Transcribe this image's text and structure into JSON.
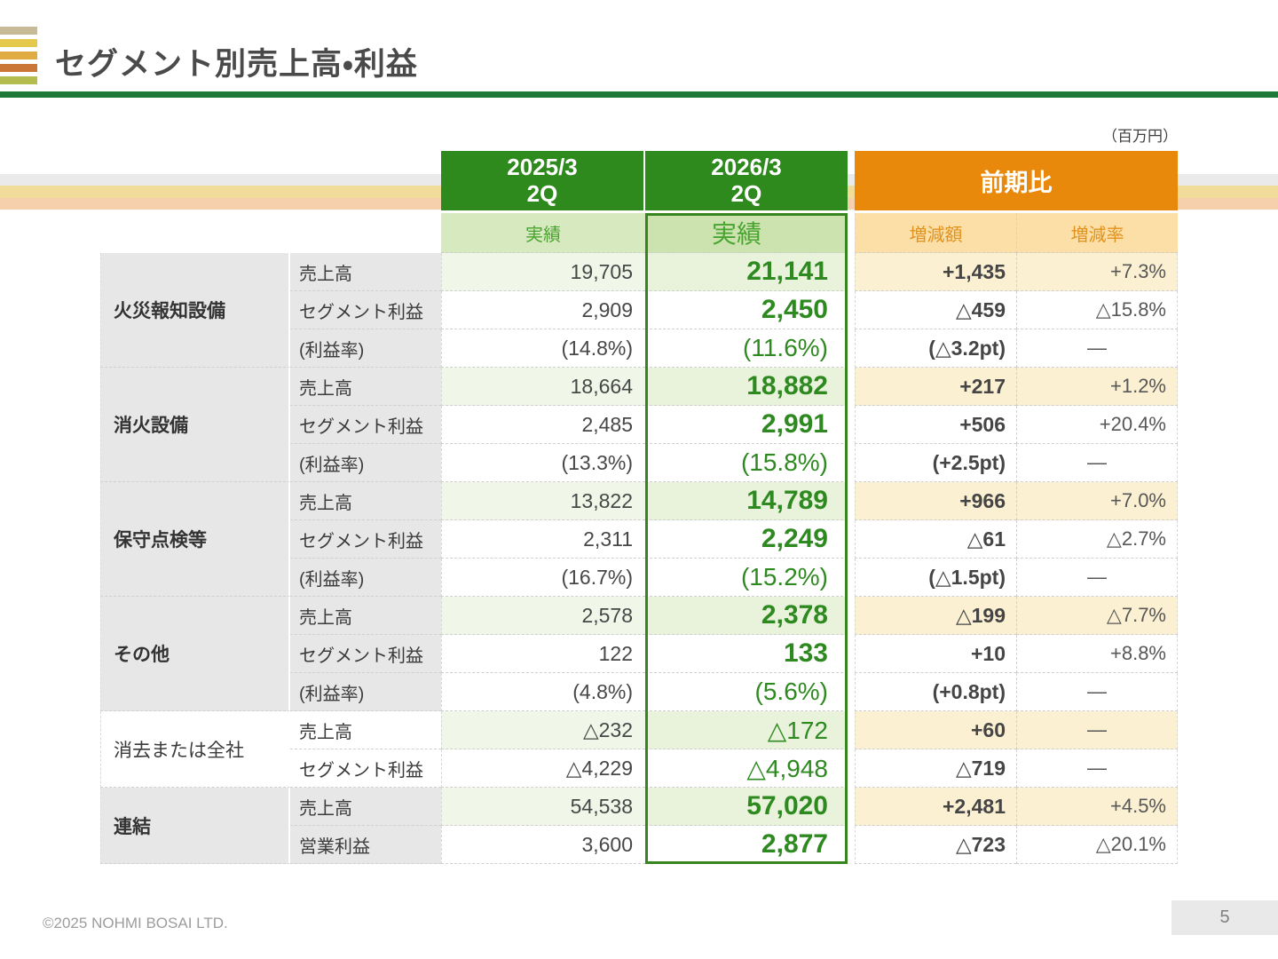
{
  "slide": {
    "title": "セグメント別売上高・利益",
    "unit_note": "（百万円）",
    "footer": {
      "copyright": "©2025 NOHMI BOSAI LTD.",
      "page_number": "5"
    }
  },
  "colors": {
    "header_green": "#2F8A1D",
    "header_orange": "#E8890B",
    "current_column_border_green": "#37851F",
    "subheader_green_bg": "#D7E9BF",
    "subheader_orange_bg": "#FBDFA6",
    "sales_row_tint_prev": "#F0F7E8",
    "sales_row_tint_curr": "#E9F3DC",
    "sales_row_tint_yoy": "#FCF0D3",
    "label_gray": "#E7E7E7",
    "title_rule_green": "#1E7A36",
    "logo_stripes": [
      "#C6BB96",
      "#E4C94C",
      "#E0AB40",
      "#C97636",
      "#B4BC4E"
    ]
  },
  "table": {
    "header": {
      "prev_period": "2025/3",
      "prev_quarter": "2Q",
      "prev_sub": "実績",
      "curr_period": "2026/3",
      "curr_quarter": "2Q",
      "curr_sub": "実績",
      "yoy_title": "前期比",
      "yoy_sub_amount": "増減額",
      "yoy_sub_rate": "増減率"
    },
    "groups": [
      {
        "segment": "火災報知設備",
        "style": "normal",
        "rows": [
          {
            "label": "売上高",
            "kind": "sales",
            "prev": "19,705",
            "curr": "21,141",
            "amount": "+1,435",
            "rate": "+7.3%"
          },
          {
            "label": "セグメント利益",
            "kind": "profit",
            "prev": "2,909",
            "curr": "2,450",
            "amount": "△459",
            "rate": "△15.8%"
          },
          {
            "label": "(利益率)",
            "kind": "ratio",
            "prev": "(14.8%)",
            "curr": "(11.6%)",
            "amount": "(△3.2pt)",
            "rate": "—"
          }
        ]
      },
      {
        "segment": "消火設備",
        "style": "normal",
        "rows": [
          {
            "label": "売上高",
            "kind": "sales",
            "prev": "18,664",
            "curr": "18,882",
            "amount": "+217",
            "rate": "+1.2%"
          },
          {
            "label": "セグメント利益",
            "kind": "profit",
            "prev": "2,485",
            "curr": "2,991",
            "amount": "+506",
            "rate": "+20.4%"
          },
          {
            "label": "(利益率)",
            "kind": "ratio",
            "prev": "(13.3%)",
            "curr": "(15.8%)",
            "amount": "(+2.5pt)",
            "rate": "—"
          }
        ]
      },
      {
        "segment": "保守点検等",
        "style": "normal",
        "rows": [
          {
            "label": "売上高",
            "kind": "sales",
            "prev": "13,822",
            "curr": "14,789",
            "amount": "+966",
            "rate": "+7.0%"
          },
          {
            "label": "セグメント利益",
            "kind": "profit",
            "prev": "2,311",
            "curr": "2,249",
            "amount": "△61",
            "rate": "△2.7%"
          },
          {
            "label": "(利益率)",
            "kind": "ratio",
            "prev": "(16.7%)",
            "curr": "(15.2%)",
            "amount": "(△1.5pt)",
            "rate": "—"
          }
        ]
      },
      {
        "segment": "その他",
        "style": "normal",
        "rows": [
          {
            "label": "売上高",
            "kind": "sales",
            "prev": "2,578",
            "curr": "2,378",
            "amount": "△199",
            "rate": "△7.7%"
          },
          {
            "label": "セグメント利益",
            "kind": "profit",
            "prev": "122",
            "curr": "133",
            "amount": "+10",
            "rate": "+8.8%"
          },
          {
            "label": "(利益率)",
            "kind": "ratio",
            "prev": "(4.8%)",
            "curr": "(5.6%)",
            "amount": "(+0.8pt)",
            "rate": "—"
          }
        ]
      },
      {
        "segment": "消去または全社",
        "style": "plain",
        "rows": [
          {
            "label": "売上高",
            "kind": "sales",
            "prev": "△232",
            "curr": "△172",
            "amount": "+60",
            "rate": "—"
          },
          {
            "label": "セグメント利益",
            "kind": "profit",
            "prev": "△4,229",
            "curr": "△4,948",
            "amount": "△719",
            "rate": "—"
          }
        ]
      },
      {
        "segment": "連結",
        "style": "normal",
        "rows": [
          {
            "label": "売上高",
            "kind": "sales",
            "prev": "54,538",
            "curr": "57,020",
            "amount": "+2,481",
            "rate": "+4.5%"
          },
          {
            "label": "営業利益",
            "kind": "profit",
            "prev": "3,600",
            "curr": "2,877",
            "amount": "△723",
            "rate": "△20.1%"
          }
        ]
      }
    ]
  }
}
